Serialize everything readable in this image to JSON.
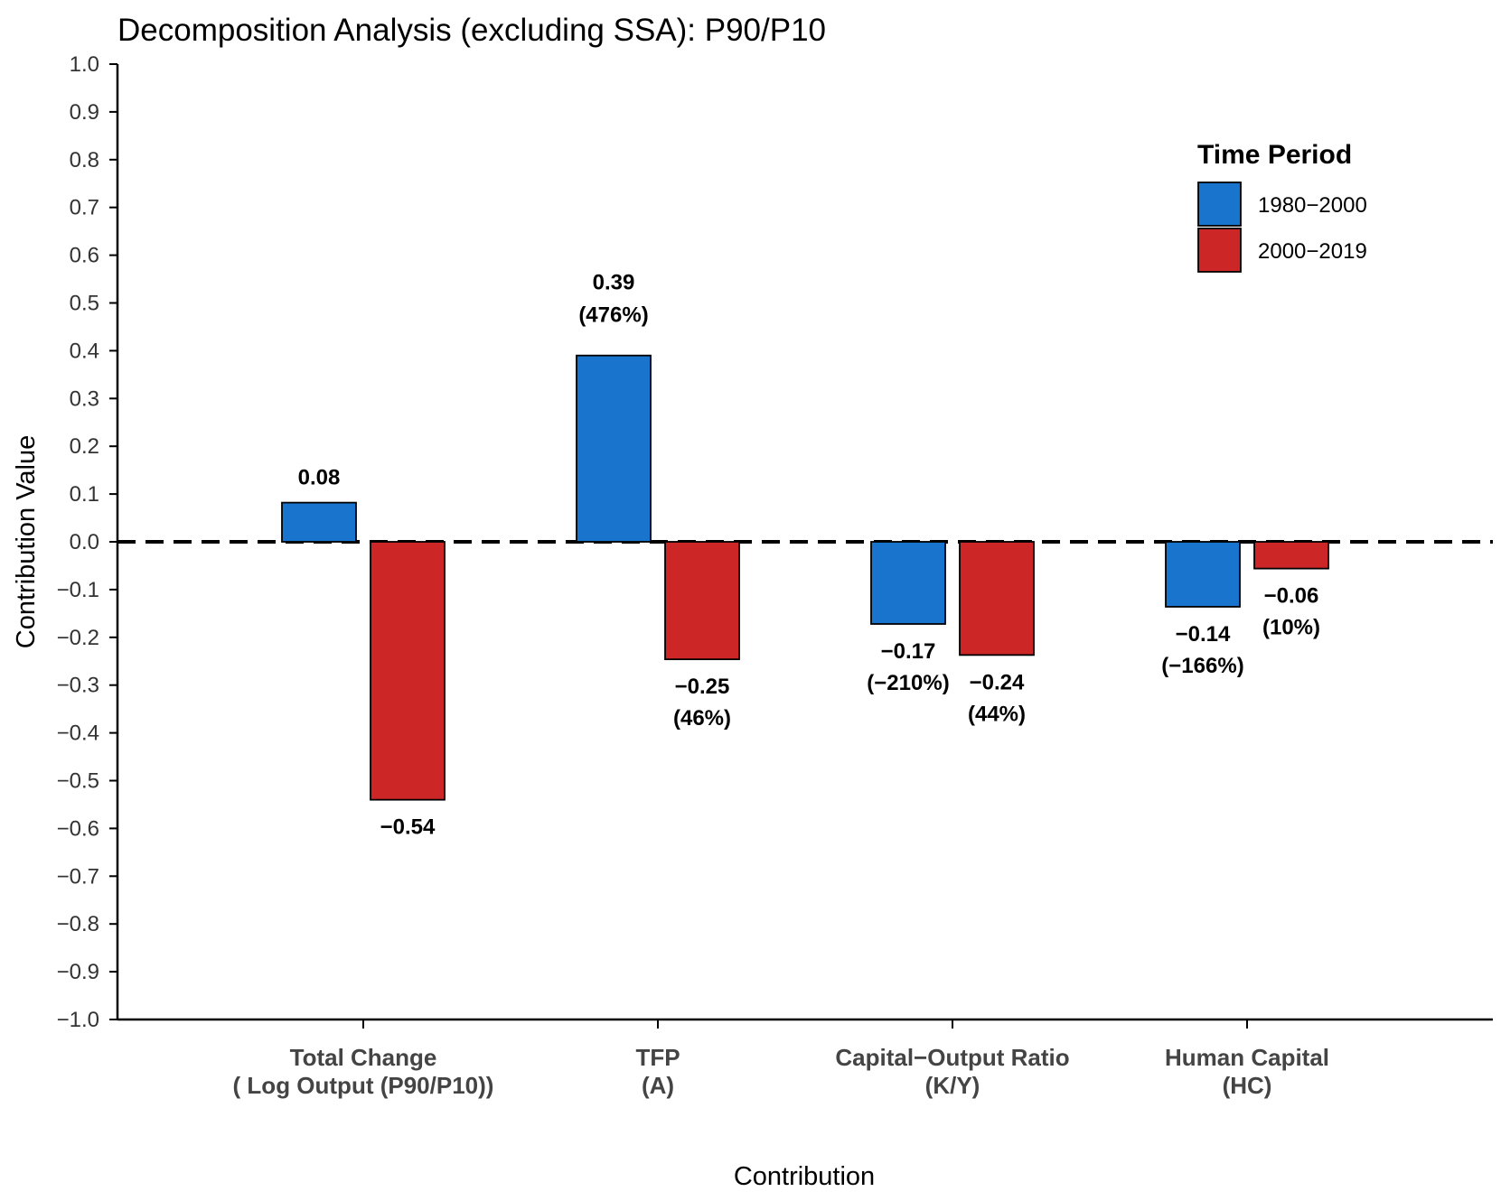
{
  "chart_data": {
    "type": "bar",
    "title": "Decomposition Analysis (excluding SSA): P90/P10",
    "xlabel": "Contribution",
    "ylabel": "Contribution Value",
    "ylim": [
      -1.0,
      1.0
    ],
    "yticks": [
      "1.0",
      "0.9",
      "0.8",
      "0.7",
      "0.6",
      "0.5",
      "0.4",
      "0.3",
      "0.2",
      "0.1",
      "0.0",
      "−0.1",
      "−0.2",
      "−0.3",
      "−0.4",
      "−0.5",
      "−0.6",
      "−0.7",
      "−0.8",
      "−0.9",
      "−1.0"
    ],
    "categories": [
      [
        "Total Change",
        "( Log Output (P90/P10))"
      ],
      [
        "TFP",
        "(A)"
      ],
      [
        "Capital−Output Ratio",
        "(K/Y)"
      ],
      [
        "Human Capital",
        "(HC)"
      ]
    ],
    "series": [
      {
        "name": "1980−2000",
        "color": "#1874CD",
        "values": [
          0.082,
          0.39,
          -0.172,
          -0.136
        ],
        "labels": [
          "0.08",
          "0.39",
          "−0.17",
          "−0.14"
        ],
        "pct_labels": [
          "",
          "(476%)",
          "(−210%)",
          "(−166%)"
        ]
      },
      {
        "name": "2000−2019",
        "color": "#CD2626",
        "values": [
          -0.54,
          -0.246,
          -0.237,
          -0.056
        ],
        "labels": [
          "−0.54",
          "−0.25",
          "−0.24",
          "−0.06"
        ],
        "pct_labels": [
          "",
          "(46%)",
          "(44%)",
          "(10%)"
        ]
      }
    ],
    "reference_line": 0.0,
    "legend": {
      "title": "Time Period",
      "position": "top-right"
    }
  }
}
